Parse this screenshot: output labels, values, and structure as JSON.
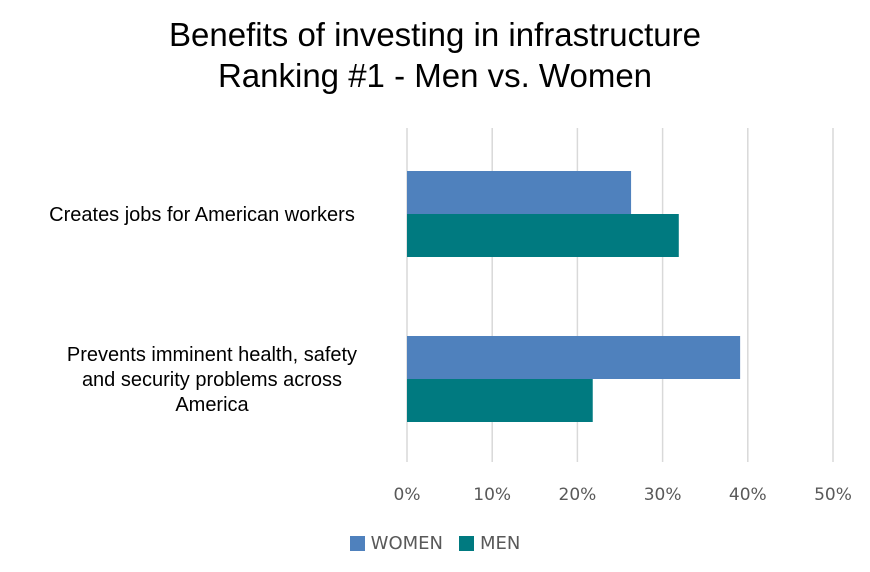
{
  "chart_data": {
    "type": "bar",
    "orientation": "horizontal",
    "title": "Benefits of investing in infrastructure",
    "subtitle": "Ranking #1 - Men vs. Women",
    "categories": [
      "Creates jobs for American workers",
      "Prevents imminent health, safety and security problems across America"
    ],
    "category_label_lines": [
      [
        "Creates jobs for American workers"
      ],
      [
        "Prevents imminent health, safety",
        "and security problems across",
        "America"
      ]
    ],
    "series": [
      {
        "name": "WOMEN",
        "color": "#4F81BD",
        "values": [
          26.3,
          39.1
        ]
      },
      {
        "name": "MEN",
        "color": "#007A80",
        "values": [
          31.9,
          21.8
        ]
      }
    ],
    "xlim": [
      0,
      50
    ],
    "xticks": [
      0,
      10,
      20,
      30,
      40,
      50
    ],
    "tick_format": "%",
    "grid": true,
    "legend_position": "bottom"
  }
}
